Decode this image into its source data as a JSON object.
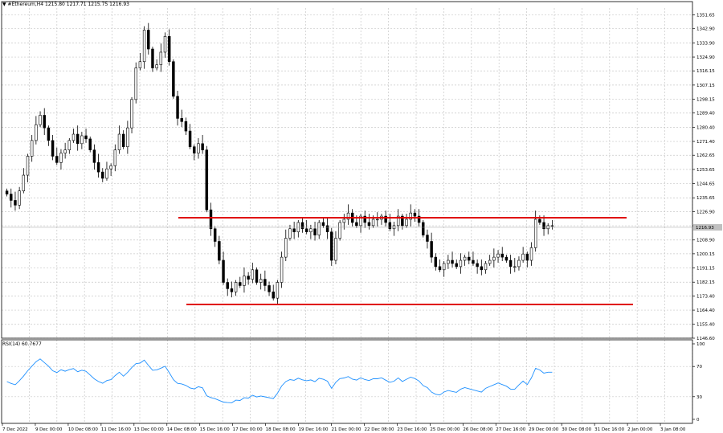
{
  "window": {
    "symbol_icon": "triangle-down-icon",
    "header": "#Ethereum,H4  1215.80 1217.71 1215.75 1216.93"
  },
  "indicator": {
    "label": "RSI(14) 60.7677"
  },
  "colors": {
    "background": "#ffffff",
    "grid": "#c8c8c8",
    "candle": "#000000",
    "sr_line": "#e00000",
    "rsi_line": "#1e90ff",
    "current_price_bg": "#c0c0c0"
  },
  "chart_data": [
    {
      "type": "candlestick",
      "symbol": "#Ethereum",
      "timeframe": "H4",
      "ylim": [
        1146.6,
        1356.0
      ],
      "y_ticks": [
        1351.65,
        1342.9,
        1333.9,
        1324.9,
        1316.15,
        1307.15,
        1298.15,
        1289.4,
        1280.4,
        1271.4,
        1262.65,
        1253.65,
        1244.65,
        1235.65,
        1226.9,
        1217.9,
        1208.9,
        1200.15,
        1191.15,
        1182.15,
        1173.4,
        1164.4,
        1155.4,
        1146.6
      ],
      "y_tick_labels": [
        "1351.65",
        "1342.90",
        "1333.90",
        "1324.90",
        "1316.15",
        "1307.15",
        "1298.15",
        "1289.40",
        "1280.40",
        "1271.40",
        "1262.65",
        "1253.65",
        "1244.65",
        "1235.65",
        "1226.90",
        "1217.90",
        "1208.90",
        "1200.15",
        "1191.15",
        "1182.15",
        "1173.40",
        "1164.40",
        "1155.40",
        "1146.60"
      ],
      "current_price": 1216.93,
      "current_price_label": "1216.93",
      "x_tick_labels": [
        "7 Dec 2022",
        "9 Dec 00:00",
        "10 Dec 08:00",
        "11 Dec 16:00",
        "13 Dec 00:00",
        "14 Dec 08:00",
        "15 Dec 16:00",
        "17 Dec 00:00",
        "18 Dec 08:00",
        "19 Dec 16:00",
        "21 Dec 00:00",
        "22 Dec 08:00",
        "23 Dec 16:00",
        "25 Dec 00:00",
        "26 Dec 08:00",
        "27 Dec 16:00",
        "29 Dec 00:00",
        "30 Dec 08:00",
        "31 Dec 16:00",
        "2 Jan 00:00",
        "3 Jan 08:00"
      ],
      "closes": [
        1238,
        1234,
        1231,
        1240,
        1250,
        1262,
        1272,
        1282,
        1288,
        1280,
        1272,
        1262,
        1258,
        1264,
        1266,
        1272,
        1276,
        1270,
        1275,
        1273,
        1266,
        1258,
        1252,
        1248,
        1254,
        1256,
        1266,
        1276,
        1268,
        1280,
        1298,
        1318,
        1322,
        1342,
        1330,
        1318,
        1320,
        1328,
        1338,
        1322,
        1300,
        1286,
        1284,
        1278,
        1268,
        1264,
        1270,
        1266,
        1228,
        1216,
        1208,
        1196,
        1182,
        1178,
        1176,
        1182,
        1180,
        1186,
        1184,
        1190,
        1182,
        1184,
        1180,
        1176,
        1172,
        1182,
        1198,
        1210,
        1216,
        1214,
        1220,
        1216,
        1214,
        1216,
        1212,
        1220,
        1218,
        1214,
        1196,
        1210,
        1220,
        1222,
        1226,
        1220,
        1218,
        1224,
        1220,
        1218,
        1222,
        1222,
        1224,
        1220,
        1216,
        1218,
        1224,
        1218,
        1222,
        1226,
        1224,
        1220,
        1212,
        1208,
        1198,
        1192,
        1190,
        1194,
        1196,
        1194,
        1192,
        1196,
        1198,
        1196,
        1194,
        1192,
        1190,
        1194,
        1196,
        1198,
        1200,
        1198,
        1196,
        1192,
        1192,
        1196,
        1200,
        1196,
        1204,
        1222,
        1220,
        1216,
        1218,
        1218
      ],
      "resistance": 1223.0,
      "support": 1168.0
    },
    {
      "type": "line",
      "name": "RSI(14)",
      "ylim": [
        0,
        100
      ],
      "y_ticks": [
        100,
        70,
        30,
        0
      ],
      "y_tick_labels": [
        "100",
        "70",
        "30",
        "0"
      ],
      "last_value": 60.7677
    }
  ]
}
